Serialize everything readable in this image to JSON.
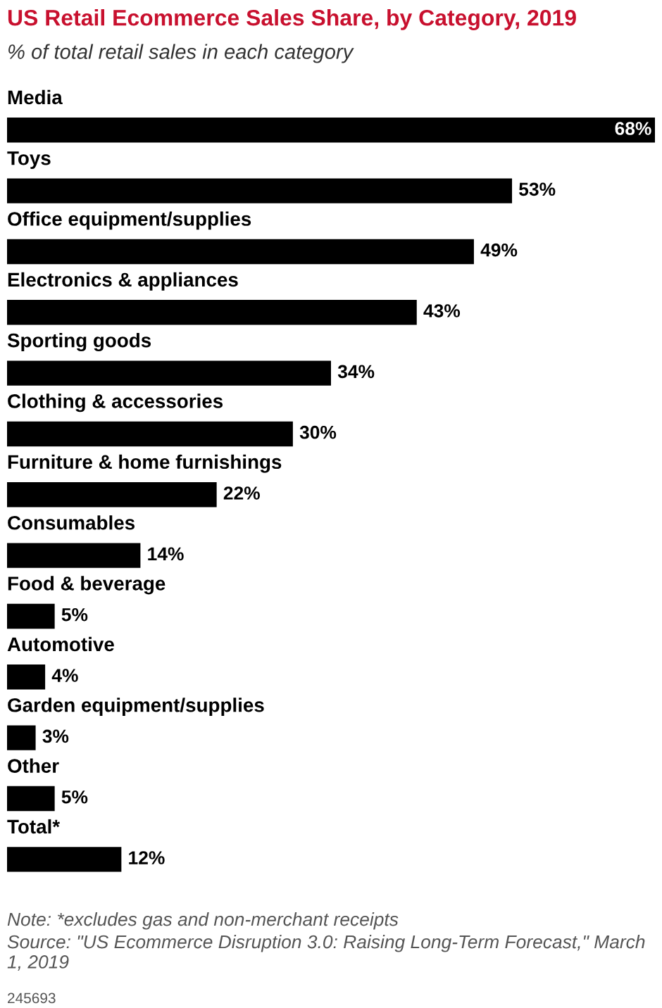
{
  "chart_data": {
    "type": "bar",
    "orientation": "horizontal",
    "title": "US Retail Ecommerce Sales Share, by Category, 2019",
    "subtitle": "% of total retail sales in each category",
    "categories": [
      "Media",
      "Toys",
      "Office equipment/supplies",
      "Electronics & appliances",
      "Sporting goods",
      "Clothing & accessories",
      "Furniture & home furnishings",
      "Consumables",
      "Food & beverage",
      "Automotive",
      "Garden equipment/supplies",
      "Other",
      "Total*"
    ],
    "values": [
      68,
      53,
      49,
      43,
      34,
      30,
      22,
      14,
      5,
      4,
      3,
      5,
      12
    ],
    "value_labels": [
      "68%",
      "53%",
      "49%",
      "43%",
      "34%",
      "30%",
      "22%",
      "14%",
      "5%",
      "4%",
      "3%",
      "5%",
      "12%"
    ],
    "color": "#000000",
    "annotations": [
      "Note: *excludes gas and non-merchant receipts",
      "Source: \"US Ecommerce Disruption 3.0: Raising Long-Term Forecast,\" March 1, 2019",
      "245693"
    ]
  }
}
